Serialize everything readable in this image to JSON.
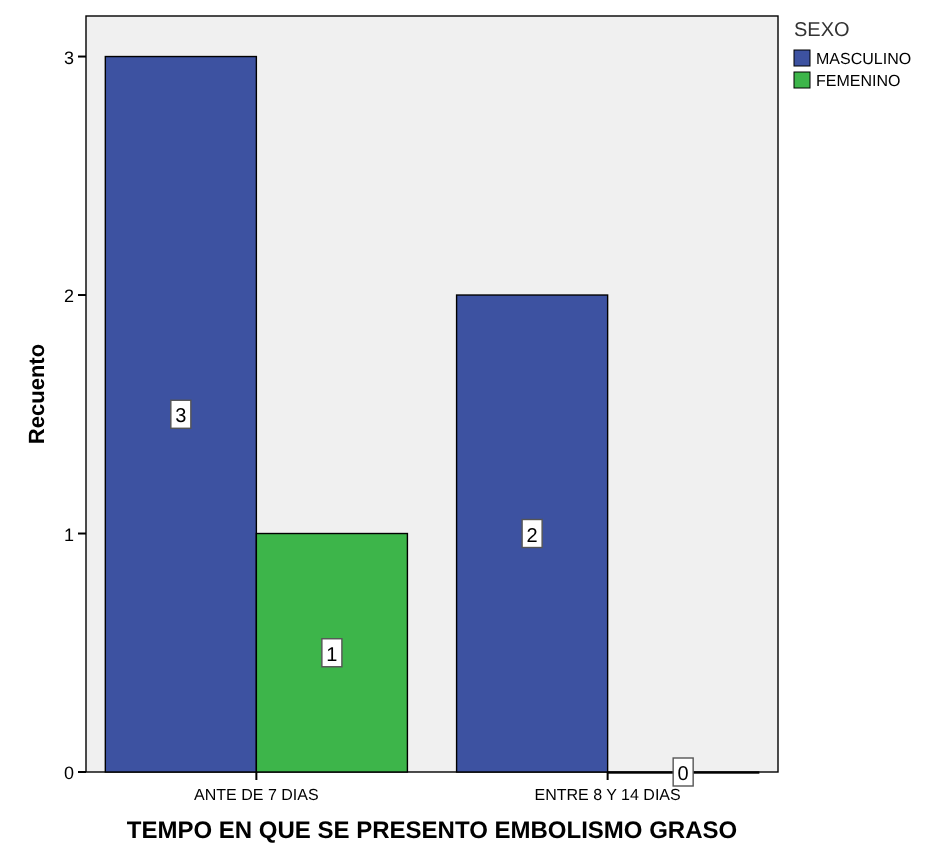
{
  "chart_data": {
    "type": "bar",
    "xlabel": "TEMPO EN QUE SE PRESENTO EMBOLISMO GRASO",
    "ylabel": "Recuento",
    "legend_title": "SEXO",
    "categories": [
      "ANTE DE 7 DIAS",
      "ENTRE 8 Y 14 DIAS"
    ],
    "series": [
      {
        "name": "MASCULINO",
        "color": "#3d52a1",
        "values": [
          3,
          2
        ]
      },
      {
        "name": "FEMENINO",
        "color": "#3db54a",
        "values": [
          1,
          0
        ]
      }
    ],
    "ylim": [
      0,
      3.17
    ],
    "yticks": [
      0,
      1,
      2,
      3
    ],
    "grid": false,
    "legend": "right",
    "data_labels": true
  }
}
